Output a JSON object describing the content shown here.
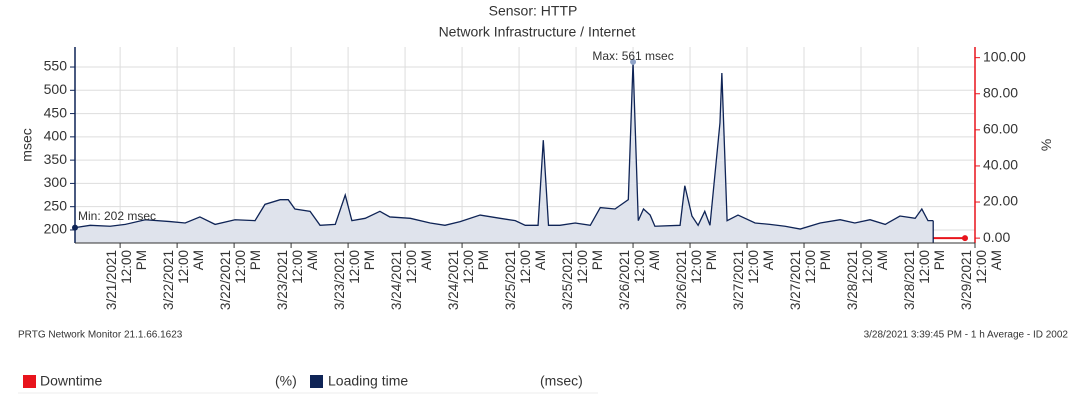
{
  "chart_data": {
    "type": "line",
    "title": "Sensor: HTTP",
    "subtitle": "Network Infrastructure / Internet",
    "y_label": "msec",
    "y2_label": "%",
    "annotations": [
      "Max: 561 msec",
      "Min: 202 msec"
    ],
    "footer_left": "PRTG Network Monitor 21.1.66.1623",
    "footer_right": "3/28/2021 3:39:45 PM - 1 h Average - ID 2002",
    "legend_units": [
      "(%)",
      "(msec)"
    ],
    "grid": true,
    "xlim": [
      2.5,
      192
    ],
    "xticks": [
      {
        "value": 12,
        "label": "3/21/2021 12:00 PM"
      },
      {
        "value": 24,
        "label": "3/22/2021 12:00 AM"
      },
      {
        "value": 36,
        "label": "3/22/2021 12:00 PM"
      },
      {
        "value": 48,
        "label": "3/23/2021 12:00 AM"
      },
      {
        "value": 60,
        "label": "3/23/2021 12:00 PM"
      },
      {
        "value": 72,
        "label": "3/24/2021 12:00 AM"
      },
      {
        "value": 84,
        "label": "3/24/2021 12:00 PM"
      },
      {
        "value": 96,
        "label": "3/25/2021 12:00 AM"
      },
      {
        "value": 108,
        "label": "3/25/2021 12:00 PM"
      },
      {
        "value": 120,
        "label": "3/26/2021 12:00 AM"
      },
      {
        "value": 132,
        "label": "3/26/2021 12:00 PM"
      },
      {
        "value": 144,
        "label": "3/27/2021 12:00 AM"
      },
      {
        "value": 156,
        "label": "3/27/2021 12:00 PM"
      },
      {
        "value": 168,
        "label": "3/28/2021 12:00 AM"
      },
      {
        "value": 180,
        "label": "3/28/2021 12:00 PM"
      },
      {
        "value": 192,
        "label": "3/29/2021 12:00 AM"
      }
    ],
    "ylim": [
      172,
      593
    ],
    "yticks": [
      200,
      250,
      300,
      350,
      400,
      450,
      500,
      550
    ],
    "y2lim": [
      -2.7,
      105.9
    ],
    "y2ticks": [
      {
        "value": 0,
        "label": "0.00"
      },
      {
        "value": 20,
        "label": "20.00"
      },
      {
        "value": 40,
        "label": "40.00"
      },
      {
        "value": 60,
        "label": "60.00"
      },
      {
        "value": 80,
        "label": "80.00"
      },
      {
        "value": 100,
        "label": "100.00"
      }
    ],
    "x": [
      2.5,
      5.7,
      9.9,
      13.1,
      17.3,
      22.5,
      25.7,
      28.8,
      32,
      36.2,
      40.4,
      42.5,
      45.7,
      47.4,
      48.8,
      52,
      54.1,
      57.3,
      59.4,
      60.8,
      63.6,
      66.7,
      68.8,
      73.1,
      77.3,
      80.4,
      83.6,
      87.8,
      92,
      95.2,
      97.3,
      100,
      101.1,
      102.2,
      104.6,
      107.8,
      111,
      113.1,
      116.2,
      119,
      120,
      121.1,
      122.2,
      123.6,
      124.6,
      129.9,
      130.9,
      132.4,
      133.7,
      135.1,
      136.2,
      138.3,
      138.7,
      139.8,
      142.1,
      145.7,
      148.8,
      152,
      155.2,
      159.4,
      163.6,
      166.7,
      169.9,
      173.1,
      176.2,
      179.4,
      180.8,
      182.1,
      183.2
    ],
    "series": [
      {
        "name": "Downtime",
        "color": "#e8141c",
        "axis": "y2",
        "values": [
          0,
          0,
          0,
          0,
          0,
          0,
          0,
          0,
          0,
          0,
          0,
          0,
          0,
          0,
          0,
          0,
          0,
          0,
          0,
          0,
          0,
          0,
          0,
          0,
          0,
          0,
          0,
          0,
          0,
          0,
          0,
          0,
          0,
          0,
          0,
          0,
          0,
          0,
          0,
          0,
          0,
          0,
          0,
          0,
          0,
          0,
          0,
          0,
          0,
          0,
          0,
          0,
          0,
          0,
          0,
          0,
          0,
          0,
          0,
          0,
          0,
          0,
          0,
          0,
          0,
          0,
          0,
          0,
          0
        ]
      },
      {
        "name": "Loading time",
        "color": "#0f2456",
        "values": [
          205,
          210,
          208,
          212,
          222,
          218,
          215,
          228,
          212,
          222,
          220,
          255,
          265,
          265,
          245,
          240,
          210,
          212,
          275,
          220,
          225,
          240,
          228,
          225,
          215,
          210,
          218,
          232,
          225,
          220,
          210,
          210,
          393,
          210,
          210,
          215,
          210,
          248,
          245,
          265,
          561,
          220,
          245,
          232,
          208,
          210,
          295,
          230,
          210,
          240,
          210,
          430,
          537,
          220,
          232,
          215,
          212,
          208,
          202,
          215,
          222,
          215,
          222,
          212,
          230,
          225,
          245,
          220,
          220
        ]
      }
    ]
  }
}
